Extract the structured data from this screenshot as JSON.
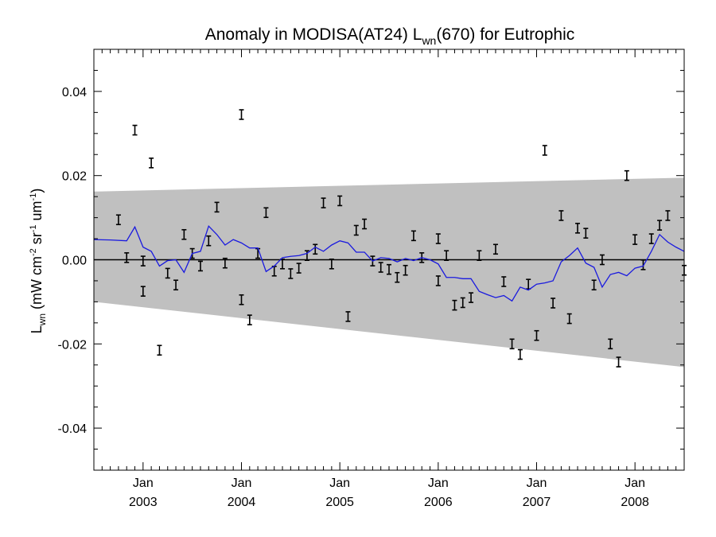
{
  "chart_data": {
    "type": "scatter",
    "title": {
      "prefix": "Anomaly in MODISA(AT24) L",
      "subscript": "wn",
      "suffix": "(670) for Eutrophic"
    },
    "ylabel": {
      "base": "L",
      "base_sub": "wn",
      "unit_open": " (mW cm",
      "sup1": "-2",
      "mid1": " sr",
      "sup2": "-1",
      "mid2": " um",
      "sup3": "-1",
      "close": ")"
    },
    "xlabel": "",
    "y_ticks": [
      "0.04",
      "0.02",
      "0.00",
      "-0.02",
      "-0.04"
    ],
    "x_ticks": [
      {
        "month": "Jan",
        "year": "2003"
      },
      {
        "month": "Jan",
        "year": "2004"
      },
      {
        "month": "Jan",
        "year": "2005"
      },
      {
        "month": "Jan",
        "year": "2006"
      },
      {
        "month": "Jan",
        "year": "2007"
      },
      {
        "month": "Jan",
        "year": "2008"
      }
    ],
    "xlim": [
      "2002-07",
      "2008-07"
    ],
    "ylim": [
      -0.05,
      0.05
    ],
    "reference_line": 0.0,
    "band": {
      "color": "#c0c0c0",
      "start": [
        "2002-07",
        0.0162,
        -0.01
      ],
      "end": [
        "2008-07",
        0.0195,
        -0.0255
      ]
    },
    "series": [
      {
        "style": "errorbars",
        "color": "#000000",
        "points": [
          [
            "2002-10",
            0.0095
          ],
          [
            "2002-11",
            0.0005
          ],
          [
            "2002-12",
            0.0308
          ],
          [
            "2003-01",
            -0.0075
          ],
          [
            "2003-01",
            -0.0003
          ],
          [
            "2003-02",
            0.023
          ],
          [
            "2003-03",
            -0.0215
          ],
          [
            "2003-04",
            -0.0032
          ],
          [
            "2003-05",
            -0.006
          ],
          [
            "2003-06",
            0.006
          ],
          [
            "2003-07",
            0.0015
          ],
          [
            "2003-08",
            -0.0015
          ],
          [
            "2003-09",
            0.0045
          ],
          [
            "2003-10",
            0.0125
          ],
          [
            "2003-11",
            -0.0008
          ],
          [
            "2004-01",
            0.0345
          ],
          [
            "2004-01",
            -0.0095
          ],
          [
            "2004-02",
            -0.0143
          ],
          [
            "2004-03",
            0.0015
          ],
          [
            "2004-04",
            0.0112
          ],
          [
            "2004-05",
            -0.0027
          ],
          [
            "2004-06",
            -0.001
          ],
          [
            "2004-07",
            -0.0033
          ],
          [
            "2004-08",
            -0.002
          ],
          [
            "2004-09",
            0.001
          ],
          [
            "2004-10",
            0.0025
          ],
          [
            "2004-11",
            0.0135
          ],
          [
            "2004-12",
            -0.001
          ],
          [
            "2005-01",
            0.014
          ],
          [
            "2005-02",
            -0.0135
          ],
          [
            "2005-03",
            0.007
          ],
          [
            "2005-04",
            0.0085
          ],
          [
            "2005-05",
            -0.0003
          ],
          [
            "2005-06",
            -0.0018
          ],
          [
            "2005-07",
            -0.0023
          ],
          [
            "2005-08",
            -0.0042
          ],
          [
            "2005-09",
            -0.0025
          ],
          [
            "2005-10",
            0.0057
          ],
          [
            "2005-11",
            0.0005
          ],
          [
            "2006-01",
            0.005
          ],
          [
            "2006-01",
            -0.005
          ],
          [
            "2006-02",
            0.001
          ],
          [
            "2006-03",
            -0.0108
          ],
          [
            "2006-04",
            -0.0102
          ],
          [
            "2006-05",
            -0.009
          ],
          [
            "2006-06",
            0.001
          ],
          [
            "2006-08",
            0.0025
          ],
          [
            "2006-09",
            -0.0052
          ],
          [
            "2006-10",
            -0.02
          ],
          [
            "2006-11",
            -0.0225
          ],
          [
            "2006-12",
            -0.0058
          ],
          [
            "2007-01",
            -0.018
          ],
          [
            "2007-02",
            0.026
          ],
          [
            "2007-03",
            -0.0103
          ],
          [
            "2007-04",
            0.0105
          ],
          [
            "2007-05",
            -0.014
          ],
          [
            "2007-06",
            0.0075
          ],
          [
            "2007-07",
            0.0063
          ],
          [
            "2007-08",
            -0.006
          ],
          [
            "2007-09",
            0.0
          ],
          [
            "2007-10",
            -0.02
          ],
          [
            "2007-11",
            -0.0243
          ],
          [
            "2007-12",
            0.02
          ],
          [
            "2008-01",
            0.0048
          ],
          [
            "2008-02",
            -0.0012
          ],
          [
            "2008-03",
            0.005
          ],
          [
            "2008-04",
            0.0082
          ],
          [
            "2008-05",
            0.0105
          ],
          [
            "2008-07",
            -0.0025
          ]
        ]
      },
      {
        "style": "line",
        "color": "#1a1adf",
        "points": [
          [
            "2002-07",
            0.0048
          ],
          [
            "2002-09",
            0.0047
          ],
          [
            "2002-11",
            0.0045
          ],
          [
            "2002-12",
            0.0078
          ],
          [
            "2003-01",
            0.003
          ],
          [
            "2003-02",
            0.002
          ],
          [
            "2003-03",
            -0.0015
          ],
          [
            "2003-04",
            -0.0002
          ],
          [
            "2003-05",
            0.0
          ],
          [
            "2003-06",
            -0.003
          ],
          [
            "2003-07",
            0.0015
          ],
          [
            "2003-08",
            0.002
          ],
          [
            "2003-09",
            0.008
          ],
          [
            "2003-10",
            0.006
          ],
          [
            "2003-11",
            0.0035
          ],
          [
            "2003-12",
            0.0048
          ],
          [
            "2004-01",
            0.004
          ],
          [
            "2004-02",
            0.0028
          ],
          [
            "2004-03",
            0.0028
          ],
          [
            "2004-04",
            -0.0028
          ],
          [
            "2004-05",
            -0.0015
          ],
          [
            "2004-06",
            0.0005
          ],
          [
            "2004-07",
            0.0008
          ],
          [
            "2004-08",
            0.001
          ],
          [
            "2004-09",
            0.0015
          ],
          [
            "2004-10",
            0.003
          ],
          [
            "2004-11",
            0.002
          ],
          [
            "2004-12",
            0.0035
          ],
          [
            "2005-01",
            0.0045
          ],
          [
            "2005-02",
            0.004
          ],
          [
            "2005-03",
            0.0018
          ],
          [
            "2005-04",
            0.0018
          ],
          [
            "2005-05",
            -0.0003
          ],
          [
            "2005-06",
            0.0005
          ],
          [
            "2005-07",
            0.0003
          ],
          [
            "2005-08",
            -0.0005
          ],
          [
            "2005-09",
            0.0003
          ],
          [
            "2005-10",
            -0.0002
          ],
          [
            "2005-11",
            0.0005
          ],
          [
            "2005-12",
            0.0
          ],
          [
            "2006-01",
            -0.001
          ],
          [
            "2006-02",
            -0.0042
          ],
          [
            "2006-03",
            -0.0042
          ],
          [
            "2006-04",
            -0.0045
          ],
          [
            "2006-05",
            -0.0045
          ],
          [
            "2006-06",
            -0.0075
          ],
          [
            "2006-07",
            -0.0083
          ],
          [
            "2006-08",
            -0.009
          ],
          [
            "2006-09",
            -0.0085
          ],
          [
            "2006-10",
            -0.0098
          ],
          [
            "2006-11",
            -0.0065
          ],
          [
            "2006-12",
            -0.0072
          ],
          [
            "2007-01",
            -0.0058
          ],
          [
            "2007-02",
            -0.0055
          ],
          [
            "2007-03",
            -0.005
          ],
          [
            "2007-04",
            -0.0005
          ],
          [
            "2007-05",
            0.001
          ],
          [
            "2007-06",
            0.0028
          ],
          [
            "2007-07",
            -0.0008
          ],
          [
            "2007-08",
            -0.0018
          ],
          [
            "2007-09",
            -0.0065
          ],
          [
            "2007-10",
            -0.0035
          ],
          [
            "2007-11",
            -0.003
          ],
          [
            "2007-12",
            -0.0038
          ],
          [
            "2008-01",
            -0.002
          ],
          [
            "2008-02",
            -0.0015
          ],
          [
            "2008-03",
            0.002
          ],
          [
            "2008-04",
            0.006
          ],
          [
            "2008-05",
            0.0042
          ],
          [
            "2008-06",
            0.003
          ],
          [
            "2008-07",
            0.002
          ]
        ]
      }
    ]
  }
}
